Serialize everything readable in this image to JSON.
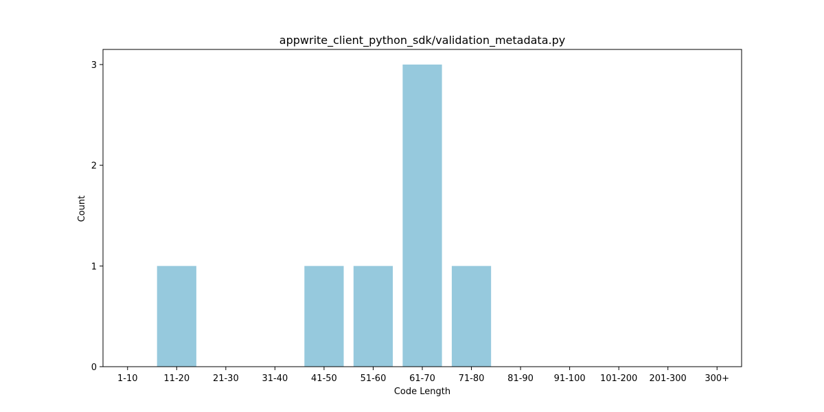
{
  "chart_data": {
    "type": "bar",
    "title": "appwrite_client_python_sdk/validation_metadata.py",
    "xlabel": "Code Length",
    "ylabel": "Count",
    "categories": [
      "1-10",
      "11-20",
      "21-30",
      "31-40",
      "41-50",
      "51-60",
      "61-70",
      "71-80",
      "81-90",
      "91-100",
      "101-200",
      "201-300",
      "300+"
    ],
    "values": [
      0,
      1,
      0,
      0,
      1,
      1,
      3,
      1,
      0,
      0,
      0,
      0,
      0
    ],
    "ylim": [
      0,
      3.15
    ],
    "yticks": [
      0,
      1,
      2,
      3
    ],
    "grid": false,
    "legend": "none",
    "bar_color": "#96c9dd"
  }
}
